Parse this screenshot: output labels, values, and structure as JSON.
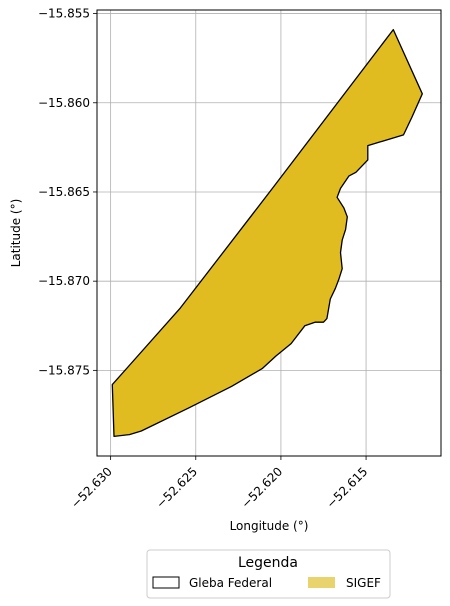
{
  "chart_data": {
    "type": "map",
    "xlabel": "Longitude (°)",
    "ylabel": "Latitude (°)",
    "xlim": [
      -52.6308,
      -52.6106
    ],
    "ylim": [
      -15.8798,
      -15.8548
    ],
    "x_ticks": [
      {
        "value": -52.63,
        "label": "−52.630"
      },
      {
        "value": -52.625,
        "label": "−52.625"
      },
      {
        "value": -52.62,
        "label": "−52.620"
      },
      {
        "value": -52.615,
        "label": "−52.615"
      }
    ],
    "y_ticks": [
      {
        "value": -15.855,
        "label": "−15.855"
      },
      {
        "value": -15.86,
        "label": "−15.860"
      },
      {
        "value": -15.865,
        "label": "−15.865"
      },
      {
        "value": -15.87,
        "label": "−15.870"
      },
      {
        "value": -15.875,
        "label": "−15.875"
      }
    ],
    "grid": true,
    "legend": {
      "title": "Legenda",
      "placement": "bottom-center",
      "entries": [
        {
          "label": "Gleba Federal",
          "style": "outline",
          "edge_color": "#000000"
        },
        {
          "label": "SIGEF",
          "style": "fill",
          "fill_color": "#e8d36c"
        }
      ]
    },
    "polygon": {
      "name": "parcel",
      "fill_color": "#e0bc20",
      "edge_color": "#000000",
      "coords": [
        [
          -52.6299,
          -15.8758
        ],
        [
          -52.6259,
          -15.8715
        ],
        [
          -52.6205,
          -15.8648
        ],
        [
          -52.6134,
          -15.8559
        ],
        [
          -52.6117,
          -15.8595
        ],
        [
          -52.6123,
          -15.8608
        ],
        [
          -52.6128,
          -15.8618
        ],
        [
          -52.6149,
          -15.8624
        ],
        [
          -52.6149,
          -15.8632
        ],
        [
          -52.6156,
          -15.8639
        ],
        [
          -52.616,
          -15.8641
        ],
        [
          -52.6165,
          -15.8648
        ],
        [
          -52.6167,
          -15.8653
        ],
        [
          -52.6163,
          -15.8659
        ],
        [
          -52.6161,
          -15.8664
        ],
        [
          -52.6162,
          -15.8671
        ],
        [
          -52.6164,
          -15.8677
        ],
        [
          -52.6165,
          -15.8684
        ],
        [
          -52.6164,
          -15.8693
        ],
        [
          -52.6166,
          -15.8699
        ],
        [
          -52.6168,
          -15.8704
        ],
        [
          -52.6171,
          -15.871
        ],
        [
          -52.6173,
          -15.8721
        ],
        [
          -52.6175,
          -15.8723
        ],
        [
          -52.618,
          -15.8723
        ],
        [
          -52.6186,
          -15.8725
        ],
        [
          -52.6194,
          -15.8735
        ],
        [
          -52.6203,
          -15.8742
        ],
        [
          -52.6211,
          -15.8749
        ],
        [
          -52.6229,
          -15.8759
        ],
        [
          -52.6254,
          -15.8771
        ],
        [
          -52.6282,
          -15.8784
        ],
        [
          -52.6289,
          -15.8786
        ],
        [
          -52.6298,
          -15.8787
        ],
        [
          -52.6299,
          -15.8758
        ]
      ]
    }
  }
}
